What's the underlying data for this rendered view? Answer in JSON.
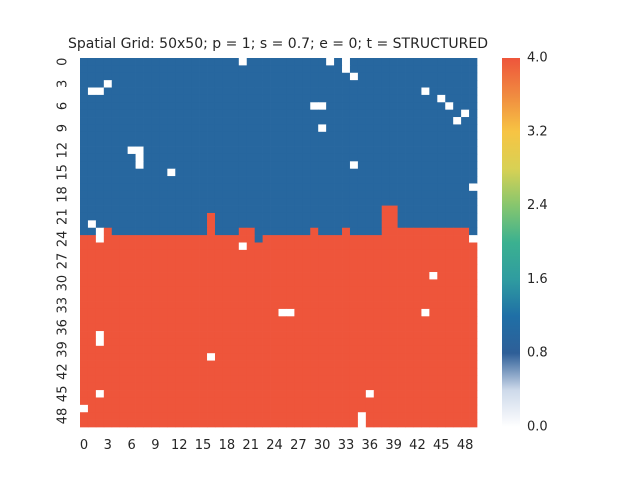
{
  "chart_data": {
    "type": "heatmap",
    "title": "Spatial Grid: 50x50; p = 1; s = 0.7; e = 0; t = STRUCTURED",
    "xlabel": "",
    "ylabel": "",
    "rows": 50,
    "cols": 50,
    "x_tick_labels": [
      "0",
      "3",
      "6",
      "9",
      "12",
      "15",
      "18",
      "21",
      "24",
      "27",
      "30",
      "33",
      "36",
      "39",
      "42",
      "45",
      "48"
    ],
    "y_tick_labels": [
      "0",
      "3",
      "6",
      "9",
      "12",
      "15",
      "18",
      "21",
      "24",
      "27",
      "30",
      "33",
      "36",
      "39",
      "42",
      "45",
      "48"
    ],
    "colorbar": {
      "vmin": 0.0,
      "vmax": 4.0,
      "tick_labels": [
        "0.0",
        "0.8",
        "1.6",
        "2.4",
        "3.2",
        "4.0"
      ],
      "colormap_stops": [
        {
          "value": 0.0,
          "color": "#ffffff"
        },
        {
          "value": 0.4,
          "color": "#cdd9ea"
        },
        {
          "value": 0.8,
          "color": "#2e5f98"
        },
        {
          "value": 1.2,
          "color": "#1f6fa6"
        },
        {
          "value": 1.6,
          "color": "#2f9ca0"
        },
        {
          "value": 2.0,
          "color": "#3bb190"
        },
        {
          "value": 2.4,
          "color": "#86c66e"
        },
        {
          "value": 2.8,
          "color": "#d8d154"
        },
        {
          "value": 3.2,
          "color": "#f7c443"
        },
        {
          "value": 3.6,
          "color": "#f08a40"
        },
        {
          "value": 4.0,
          "color": "#ee553b"
        }
      ]
    },
    "values_description": "Top region cells = 1 (blue), lower region cells = 4 (red), scattered empty cells = 0 (white)",
    "blue_value": 1,
    "red_value": 4,
    "empty_value": 0,
    "boundary_row_by_col": [
      24,
      24,
      24,
      23,
      24,
      24,
      24,
      24,
      24,
      24,
      24,
      24,
      24,
      24,
      24,
      24,
      21,
      24,
      24,
      24,
      23,
      23,
      25,
      24,
      24,
      24,
      24,
      24,
      24,
      23,
      24,
      24,
      24,
      23,
      24,
      24,
      24,
      24,
      20,
      20,
      23,
      23,
      23,
      23,
      23,
      23,
      23,
      23,
      23,
      24
    ],
    "empty_cells": [
      [
        0,
        20
      ],
      [
        0,
        31
      ],
      [
        0,
        33
      ],
      [
        1,
        33
      ],
      [
        2,
        34
      ],
      [
        3,
        3
      ],
      [
        4,
        1
      ],
      [
        4,
        2
      ],
      [
        4,
        43
      ],
      [
        5,
        45
      ],
      [
        6,
        29
      ],
      [
        6,
        30
      ],
      [
        6,
        46
      ],
      [
        7,
        48
      ],
      [
        8,
        47
      ],
      [
        9,
        30
      ],
      [
        12,
        6
      ],
      [
        12,
        7
      ],
      [
        13,
        7
      ],
      [
        14,
        7
      ],
      [
        14,
        34
      ],
      [
        15,
        11
      ],
      [
        17,
        49
      ],
      [
        22,
        1
      ],
      [
        23,
        2
      ],
      [
        24,
        2
      ],
      [
        24,
        49
      ],
      [
        25,
        20
      ],
      [
        29,
        44
      ],
      [
        34,
        25
      ],
      [
        34,
        26
      ],
      [
        34,
        43
      ],
      [
        37,
        2
      ],
      [
        38,
        2
      ],
      [
        40,
        16
      ],
      [
        45,
        2
      ],
      [
        45,
        36
      ],
      [
        47,
        0
      ],
      [
        48,
        35
      ],
      [
        49,
        35
      ]
    ]
  }
}
